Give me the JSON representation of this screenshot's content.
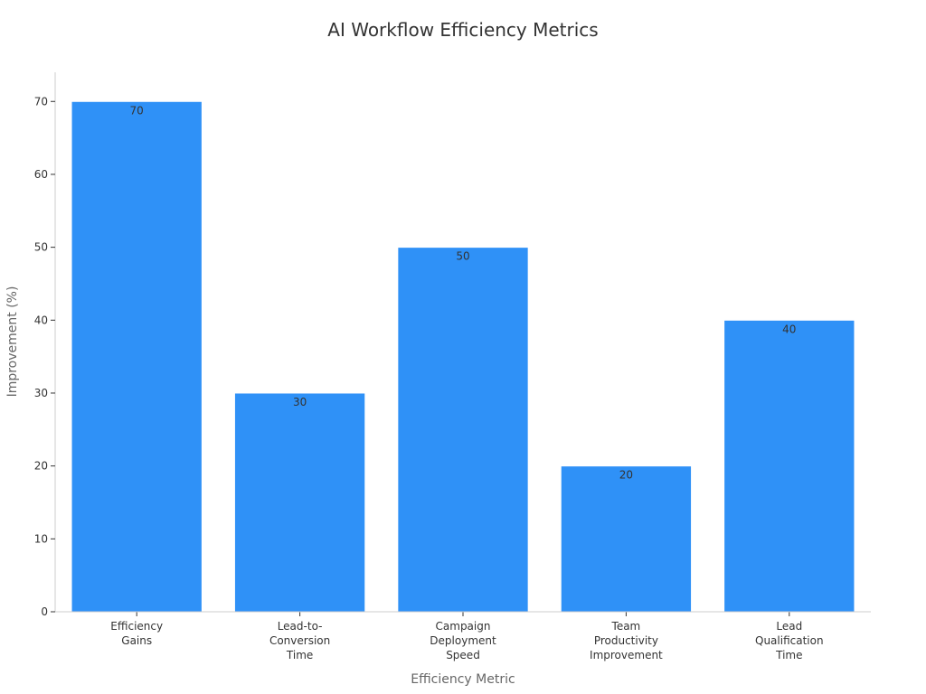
{
  "chart_data": {
    "type": "bar",
    "title": "AI Workflow Efficiency Metrics",
    "xlabel": "Efficiency Metric",
    "ylabel": "Improvement (%)",
    "categories": [
      [
        "Efficiency",
        "Gains"
      ],
      [
        "Lead-to-",
        "Conversion",
        "Time"
      ],
      [
        "Campaign",
        "Deployment",
        "Speed"
      ],
      [
        "Team",
        "Productivity",
        "Improvement"
      ],
      [
        "Lead",
        "Qualification",
        "Time"
      ]
    ],
    "values": [
      70,
      30,
      50,
      20,
      40
    ],
    "yticks": [
      0,
      10,
      20,
      30,
      40,
      50,
      60,
      70
    ],
    "ylim": [
      0,
      74
    ],
    "grid": false,
    "legend": "none",
    "bar_color": "#2f91f7",
    "bar_edge_color": "#ffffff"
  }
}
